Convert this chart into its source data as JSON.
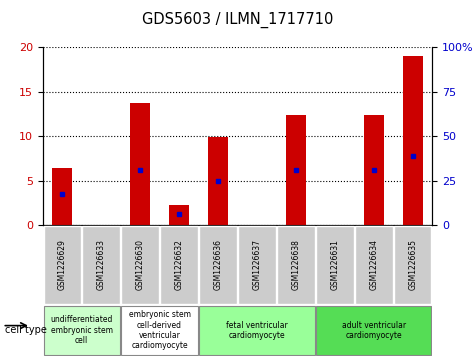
{
  "title": "GDS5603 / ILMN_1717710",
  "samples": [
    "GSM1226629",
    "GSM1226633",
    "GSM1226630",
    "GSM1226632",
    "GSM1226636",
    "GSM1226637",
    "GSM1226638",
    "GSM1226631",
    "GSM1226634",
    "GSM1226635"
  ],
  "counts": [
    6.4,
    0,
    13.7,
    2.2,
    9.9,
    0,
    12.4,
    0,
    12.4,
    19.0
  ],
  "percentile_ranks": [
    3.5,
    0,
    6.2,
    1.2,
    5.0,
    0,
    6.2,
    0,
    6.2,
    7.8
  ],
  "ylim_left": [
    0,
    20
  ],
  "ylim_right": [
    0,
    100
  ],
  "yticks_left": [
    0,
    5,
    10,
    15,
    20
  ],
  "yticks_right": [
    0,
    25,
    50,
    75,
    100
  ],
  "ytick_labels_right": [
    "0",
    "25",
    "50",
    "75",
    "100%"
  ],
  "cell_types": [
    {
      "label": "undifferentiated\nembryonic stem\ncell",
      "cols": [
        0,
        1
      ],
      "color": "#ccffcc"
    },
    {
      "label": "embryonic stem\ncell-derived\nventricular\ncardiomyocyte",
      "cols": [
        2,
        3
      ],
      "color": "#ffffff"
    },
    {
      "label": "fetal ventricular\ncardiomyocyte",
      "cols": [
        4,
        5,
        6
      ],
      "color": "#99ff99"
    },
    {
      "label": "adult ventricular\ncardiomyocyte",
      "cols": [
        7,
        8,
        9
      ],
      "color": "#55dd55"
    }
  ],
  "bar_color": "#cc0000",
  "percentile_color": "#0000cc",
  "tick_label_bg": "#cccccc",
  "legend_count_color": "#cc0000",
  "legend_pct_color": "#0000cc",
  "cell_type_label": "cell type"
}
